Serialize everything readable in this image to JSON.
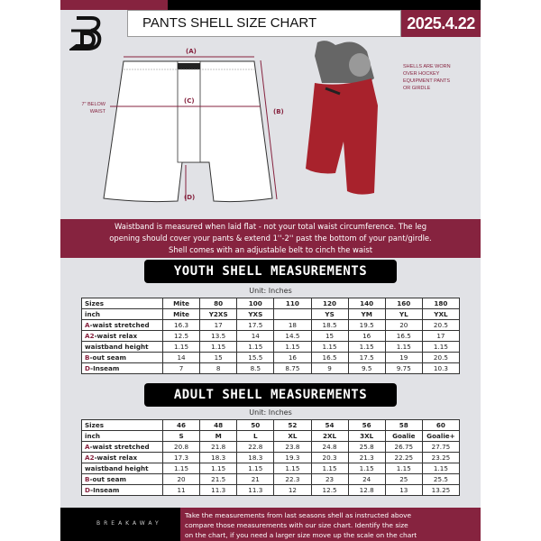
{
  "header": {
    "title": "PANTS SHELL SIZE CHART",
    "date": "2025.4.22"
  },
  "diagram": {
    "label_a": "(A)",
    "label_b": "(B)",
    "label_c": "(C)",
    "label_d": "(D)",
    "below_waist_note": [
      "7'' BELOW",
      "WAIST"
    ],
    "worn_note": [
      "SHELLS ARE WORN",
      "OVER HOCKEY",
      "EQUIPMENT PANTS",
      "OR GIRDLE"
    ]
  },
  "info_band": [
    "Waistband is measured when laid flat - not your total waist circumference. The leg",
    "opening should cover your pants & extend 1''-2'' past the bottom of your pant/girdle.",
    "Shell comes with an adjustable belt to cinch the waist"
  ],
  "youth": {
    "title": "YOUTH SHELL MEASUREMENTS",
    "unit": "Unit: Inches",
    "rows": [
      {
        "k": "",
        "label": "Sizes",
        "cells": [
          "Mite",
          "80",
          "100",
          "110",
          "120",
          "140",
          "160",
          "180"
        ]
      },
      {
        "k": "",
        "label": "inch",
        "cells": [
          "Mite",
          "Y2XS",
          "YXS",
          "",
          "YS",
          "YM",
          "YL",
          "YXL"
        ]
      },
      {
        "k": "A",
        "label": "-waist stretched",
        "cells": [
          "16.3",
          "17",
          "17.5",
          "18",
          "18.5",
          "19.5",
          "20",
          "20.5"
        ]
      },
      {
        "k": "A2",
        "label": "-waist relax",
        "cells": [
          "12.5",
          "13.5",
          "14",
          "14.5",
          "15",
          "16",
          "16.5",
          "17"
        ]
      },
      {
        "k": "",
        "label": "waistband height",
        "cells": [
          "1.15",
          "1.15",
          "1.15",
          "1.15",
          "1.15",
          "1.15",
          "1.15",
          "1.15"
        ]
      },
      {
        "k": "B",
        "label": "-out seam",
        "cells": [
          "14",
          "15",
          "15.5",
          "16",
          "16.5",
          "17.5",
          "19",
          "20.5"
        ]
      },
      {
        "k": "D",
        "label": "-Inseam",
        "cells": [
          "7",
          "8",
          "8.5",
          "8.75",
          "9",
          "9.5",
          "9.75",
          "10.3"
        ]
      }
    ]
  },
  "adult": {
    "title": "ADULT SHELL MEASUREMENTS",
    "unit": "Unit: Inches",
    "rows": [
      {
        "k": "",
        "label": "Sizes",
        "cells": [
          "46",
          "48",
          "50",
          "52",
          "54",
          "56",
          "58",
          "60"
        ]
      },
      {
        "k": "",
        "label": "inch",
        "cells": [
          "S",
          "M",
          "L",
          "XL",
          "2XL",
          "3XL",
          "Goalie",
          "Goalie+"
        ]
      },
      {
        "k": "A",
        "label": "-waist stretched",
        "cells": [
          "20.8",
          "21.8",
          "22.8",
          "23.8",
          "24.8",
          "25.8",
          "26.75",
          "27.75"
        ]
      },
      {
        "k": "A2",
        "label": "-waist relax",
        "cells": [
          "17.3",
          "18.3",
          "18.3",
          "19.3",
          "20.3",
          "21.3",
          "22.25",
          "23.25"
        ]
      },
      {
        "k": "",
        "label": "waistband height",
        "cells": [
          "1.15",
          "1.15",
          "1.15",
          "1.15",
          "1.15",
          "1.15",
          "1.15",
          "1.15"
        ]
      },
      {
        "k": "B",
        "label": "-out seam",
        "cells": [
          "20",
          "21.5",
          "21",
          "22.3",
          "23",
          "24",
          "25",
          "25.5"
        ]
      },
      {
        "k": "D",
        "label": "-Inseam",
        "cells": [
          "11",
          "11.3",
          "11.3",
          "12",
          "12.5",
          "12.8",
          "13",
          "13.25"
        ]
      }
    ]
  },
  "footer": {
    "brand": "BREAKAWAY",
    "text": [
      "Take the measurements from last seasons shell as instructed above",
      "compare those measurements  with our size chart. Identify the size",
      "on the chart, if you need a larger size move up the scale on the chart"
    ]
  },
  "colors": {
    "accent": "#86233f",
    "background": "#e1e2e6",
    "shell": "#a8222c"
  }
}
